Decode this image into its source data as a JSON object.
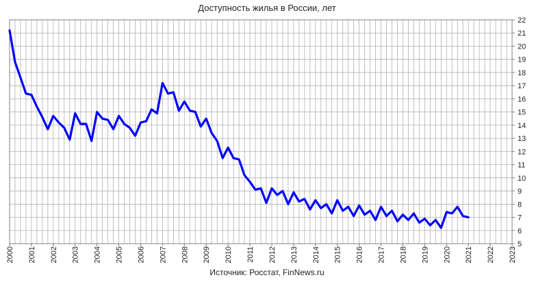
{
  "chart_data": {
    "type": "line",
    "title": "Доступность жилья в России, лет",
    "source": "Источник: Росстат, FinNews.ru",
    "xlabel": "",
    "ylabel": "",
    "xlim": [
      2000,
      2023
    ],
    "ylim": [
      5,
      22
    ],
    "grid": true,
    "legend": "none",
    "y_axis_position": "right",
    "x_ticks": [
      "2000",
      "2001",
      "2002",
      "2003",
      "2004",
      "2005",
      "2006",
      "2007",
      "2008",
      "2009",
      "2010",
      "2011",
      "2012",
      "2013",
      "2014",
      "2015",
      "2016",
      "2017",
      "2018",
      "2019",
      "2020",
      "2021",
      "2022",
      "2023"
    ],
    "y_ticks": [
      "5",
      "6",
      "7",
      "8",
      "9",
      "10",
      "11",
      "12",
      "13",
      "14",
      "15",
      "16",
      "17",
      "18",
      "19",
      "20",
      "21",
      "22"
    ],
    "colors": {
      "line": "#0000ff",
      "grid": "#b0b0b0",
      "axis": "#808080"
    },
    "series": [
      {
        "x": [
          2000.0,
          2000.25,
          2000.5,
          2000.75,
          2001.0,
          2001.25,
          2001.5,
          2001.75,
          2002.0,
          2002.25,
          2002.5,
          2002.75,
          2003.0,
          2003.25,
          2003.5,
          2003.75,
          2004.0,
          2004.25,
          2004.5,
          2004.75,
          2005.0,
          2005.25,
          2005.5,
          2005.75,
          2006.0,
          2006.25,
          2006.5,
          2006.75,
          2007.0,
          2007.25,
          2007.5,
          2007.75,
          2008.0,
          2008.25,
          2008.5,
          2008.75,
          2009.0,
          2009.25,
          2009.5,
          2009.75,
          2010.0,
          2010.25,
          2010.5,
          2010.75,
          2011.0,
          2011.25,
          2011.5,
          2011.75,
          2012.0,
          2012.25,
          2012.5,
          2012.75,
          2013.0,
          2013.25,
          2013.5,
          2013.75,
          2014.0,
          2014.25,
          2014.5,
          2014.75,
          2015.0,
          2015.25,
          2015.5,
          2015.75,
          2016.0,
          2016.25,
          2016.5,
          2016.75,
          2017.0,
          2017.25,
          2017.5,
          2017.75,
          2018.0,
          2018.25,
          2018.5,
          2018.75,
          2019.0,
          2019.25,
          2019.5,
          2019.75,
          2020.0,
          2020.25,
          2020.5,
          2020.75,
          2021.0
        ],
        "values": [
          21.2,
          18.8,
          17.6,
          16.4,
          16.3,
          15.4,
          14.6,
          13.7,
          14.7,
          14.2,
          13.8,
          12.9,
          14.9,
          14.1,
          14.1,
          12.8,
          15.0,
          14.5,
          14.4,
          13.7,
          14.7,
          14.1,
          13.8,
          13.2,
          14.2,
          14.3,
          15.2,
          14.9,
          17.2,
          16.4,
          16.5,
          15.1,
          15.8,
          15.1,
          15.0,
          13.9,
          14.5,
          13.4,
          12.8,
          11.5,
          12.3,
          11.5,
          11.4,
          10.2,
          9.7,
          9.1,
          9.2,
          8.1,
          9.2,
          8.7,
          9.0,
          8.0,
          8.9,
          8.2,
          8.4,
          7.6,
          8.3,
          7.7,
          8.0,
          7.3,
          8.3,
          7.5,
          7.8,
          7.1,
          7.9,
          7.2,
          7.5,
          6.8,
          7.8,
          7.1,
          7.5,
          6.7,
          7.2,
          6.8,
          7.3,
          6.6,
          6.9,
          6.4,
          6.8,
          6.2,
          7.4,
          7.3,
          7.8,
          7.1,
          7.0
        ]
      }
    ]
  }
}
